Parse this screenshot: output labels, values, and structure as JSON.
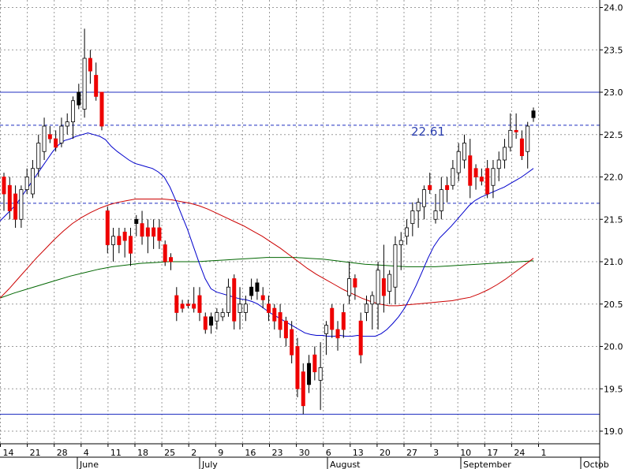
{
  "chart_data": {
    "type": "candlestick",
    "grid": true,
    "y_ticks": [
      "24.0",
      "23.5",
      "23.0",
      "22.5",
      "22.0",
      "21.5",
      "21.0",
      "20.5",
      "20.0",
      "19.5",
      "19.0"
    ],
    "ylim": [
      18.75,
      24.25
    ],
    "x_ticks": [
      "14",
      "21",
      "28",
      "4",
      "11",
      "18",
      "25",
      "2",
      "9",
      "16",
      "23",
      "30",
      "6",
      "13",
      "20",
      "27",
      "3",
      "10",
      "17",
      "24",
      "1"
    ],
    "months": [
      "June",
      "July",
      "August",
      "September",
      "Octob"
    ],
    "annotation": "22.61",
    "horizontal_lines": [
      {
        "value": 23.0,
        "style": "solid"
      },
      {
        "value": 22.61,
        "style": "dashed"
      },
      {
        "value": 21.69,
        "style": "dashed"
      },
      {
        "value": 19.2,
        "style": "solid"
      }
    ],
    "candles": [
      {
        "o": 22.0,
        "h": 22.05,
        "l": 21.6,
        "c": 21.8,
        "d": "down"
      },
      {
        "o": 21.9,
        "h": 22.0,
        "l": 21.5,
        "c": 21.6,
        "d": "down"
      },
      {
        "o": 21.8,
        "h": 21.9,
        "l": 21.4,
        "c": 21.5,
        "d": "down"
      },
      {
        "o": 21.5,
        "h": 21.9,
        "l": 21.4,
        "c": 21.85,
        "d": "up"
      },
      {
        "o": 21.85,
        "h": 22.1,
        "l": 21.8,
        "c": 22.0,
        "d": "up"
      },
      {
        "o": 21.8,
        "h": 22.2,
        "l": 21.75,
        "c": 22.1,
        "d": "up"
      },
      {
        "o": 22.1,
        "h": 22.5,
        "l": 22.0,
        "c": 22.4,
        "d": "up"
      },
      {
        "o": 22.3,
        "h": 22.7,
        "l": 22.2,
        "c": 22.6,
        "d": "up"
      },
      {
        "o": 22.5,
        "h": 22.6,
        "l": 22.4,
        "c": 22.45,
        "d": "down"
      },
      {
        "o": 22.45,
        "h": 22.55,
        "l": 22.3,
        "c": 22.35,
        "d": "down"
      },
      {
        "o": 22.4,
        "h": 22.7,
        "l": 22.35,
        "c": 22.6,
        "d": "up"
      },
      {
        "o": 22.6,
        "h": 22.75,
        "l": 22.5,
        "c": 22.65,
        "d": "up"
      },
      {
        "o": 22.65,
        "h": 22.95,
        "l": 22.45,
        "c": 22.9,
        "d": "up"
      },
      {
        "o": 23.0,
        "h": 23.1,
        "l": 22.8,
        "c": 22.85,
        "d": "black"
      },
      {
        "o": 22.8,
        "h": 23.75,
        "l": 22.7,
        "c": 23.4,
        "d": "up"
      },
      {
        "o": 23.4,
        "h": 23.5,
        "l": 23.1,
        "c": 23.25,
        "d": "down"
      },
      {
        "o": 23.2,
        "h": 23.35,
        "l": 22.9,
        "c": 22.95,
        "d": "down"
      },
      {
        "o": 23.0,
        "h": 23.0,
        "l": 22.55,
        "c": 22.6,
        "d": "down"
      },
      {
        "o": 21.6,
        "h": 21.65,
        "l": 21.1,
        "c": 21.2,
        "d": "down"
      },
      {
        "o": 21.3,
        "h": 21.4,
        "l": 21.0,
        "c": 21.2,
        "d": "up"
      },
      {
        "o": 21.3,
        "h": 21.4,
        "l": 21.1,
        "c": 21.2,
        "d": "down"
      },
      {
        "o": 21.35,
        "h": 21.4,
        "l": 21.05,
        "c": 21.25,
        "d": "down"
      },
      {
        "o": 21.3,
        "h": 21.4,
        "l": 20.95,
        "c": 21.1,
        "d": "down"
      },
      {
        "o": 21.5,
        "h": 21.55,
        "l": 21.3,
        "c": 21.45,
        "d": "black"
      },
      {
        "o": 21.45,
        "h": 21.6,
        "l": 21.2,
        "c": 21.3,
        "d": "down"
      },
      {
        "o": 21.4,
        "h": 21.5,
        "l": 21.1,
        "c": 21.3,
        "d": "down"
      },
      {
        "o": 21.4,
        "h": 21.5,
        "l": 21.15,
        "c": 21.3,
        "d": "down"
      },
      {
        "o": 21.4,
        "h": 21.5,
        "l": 21.15,
        "c": 21.25,
        "d": "down"
      },
      {
        "o": 21.2,
        "h": 21.25,
        "l": 20.95,
        "c": 21.0,
        "d": "down"
      },
      {
        "o": 21.05,
        "h": 21.1,
        "l": 20.9,
        "c": 21.0,
        "d": "down"
      },
      {
        "o": 20.6,
        "h": 20.7,
        "l": 20.3,
        "c": 20.4,
        "d": "down"
      },
      {
        "o": 20.5,
        "h": 20.55,
        "l": 20.4,
        "c": 20.45,
        "d": "down"
      },
      {
        "o": 20.5,
        "h": 20.55,
        "l": 20.45,
        "c": 20.5,
        "d": "down"
      },
      {
        "o": 20.5,
        "h": 20.7,
        "l": 20.4,
        "c": 20.45,
        "d": "down"
      },
      {
        "o": 20.6,
        "h": 20.7,
        "l": 20.3,
        "c": 20.4,
        "d": "down"
      },
      {
        "o": 20.35,
        "h": 20.4,
        "l": 20.15,
        "c": 20.2,
        "d": "down"
      },
      {
        "o": 20.25,
        "h": 20.4,
        "l": 20.15,
        "c": 20.35,
        "d": "black"
      },
      {
        "o": 20.3,
        "h": 20.45,
        "l": 20.2,
        "c": 20.4,
        "d": "up"
      },
      {
        "o": 20.35,
        "h": 20.45,
        "l": 20.3,
        "c": 20.4,
        "d": "up"
      },
      {
        "o": 20.4,
        "h": 20.8,
        "l": 20.35,
        "c": 20.7,
        "d": "up"
      },
      {
        "o": 20.8,
        "h": 20.85,
        "l": 20.2,
        "c": 20.3,
        "d": "down"
      },
      {
        "o": 20.5,
        "h": 20.7,
        "l": 20.2,
        "c": 20.4,
        "d": "up"
      },
      {
        "o": 20.4,
        "h": 20.6,
        "l": 20.3,
        "c": 20.5,
        "d": "up"
      },
      {
        "o": 20.7,
        "h": 20.8,
        "l": 20.55,
        "c": 20.6,
        "d": "black"
      },
      {
        "o": 20.75,
        "h": 20.8,
        "l": 20.55,
        "c": 20.65,
        "d": "black"
      },
      {
        "o": 20.6,
        "h": 20.7,
        "l": 20.45,
        "c": 20.55,
        "d": "down"
      },
      {
        "o": 20.5,
        "h": 20.6,
        "l": 20.3,
        "c": 20.4,
        "d": "down"
      },
      {
        "o": 20.45,
        "h": 20.5,
        "l": 20.2,
        "c": 20.3,
        "d": "down"
      },
      {
        "o": 20.4,
        "h": 20.5,
        "l": 20.1,
        "c": 20.2,
        "d": "down"
      },
      {
        "o": 20.3,
        "h": 20.35,
        "l": 20.0,
        "c": 20.1,
        "d": "down"
      },
      {
        "o": 20.2,
        "h": 20.3,
        "l": 19.8,
        "c": 19.9,
        "d": "down"
      },
      {
        "o": 20.0,
        "h": 20.1,
        "l": 19.4,
        "c": 19.5,
        "d": "down"
      },
      {
        "o": 19.7,
        "h": 19.8,
        "l": 19.2,
        "c": 19.3,
        "d": "down"
      },
      {
        "o": 19.8,
        "h": 19.9,
        "l": 19.45,
        "c": 19.55,
        "d": "black"
      },
      {
        "o": 19.7,
        "h": 20.0,
        "l": 19.6,
        "c": 19.9,
        "d": "down"
      },
      {
        "o": 19.6,
        "h": 20.05,
        "l": 19.25,
        "c": 19.75,
        "d": "up"
      },
      {
        "o": 20.15,
        "h": 20.3,
        "l": 19.9,
        "c": 20.25,
        "d": "up"
      },
      {
        "o": 20.45,
        "h": 20.5,
        "l": 20.1,
        "c": 20.2,
        "d": "down"
      },
      {
        "o": 20.2,
        "h": 20.3,
        "l": 19.95,
        "c": 20.1,
        "d": "down"
      },
      {
        "o": 20.4,
        "h": 20.5,
        "l": 20.1,
        "c": 20.2,
        "d": "down"
      },
      {
        "o": 20.6,
        "h": 21.0,
        "l": 20.5,
        "c": 20.8,
        "d": "up"
      },
      {
        "o": 20.8,
        "h": 20.85,
        "l": 20.55,
        "c": 20.7,
        "d": "down"
      },
      {
        "o": 20.3,
        "h": 20.4,
        "l": 19.8,
        "c": 19.9,
        "d": "down"
      },
      {
        "o": 20.4,
        "h": 20.6,
        "l": 20.3,
        "c": 20.5,
        "d": "up"
      },
      {
        "o": 20.5,
        "h": 20.65,
        "l": 20.2,
        "c": 20.6,
        "d": "up"
      },
      {
        "o": 20.5,
        "h": 21.0,
        "l": 20.2,
        "c": 20.9,
        "d": "up"
      },
      {
        "o": 20.8,
        "h": 21.2,
        "l": 20.4,
        "c": 20.6,
        "d": "down"
      },
      {
        "o": 20.65,
        "h": 20.9,
        "l": 20.5,
        "c": 20.85,
        "d": "up"
      },
      {
        "o": 20.7,
        "h": 21.3,
        "l": 20.5,
        "c": 21.2,
        "d": "up"
      },
      {
        "o": 21.2,
        "h": 21.35,
        "l": 20.9,
        "c": 21.25,
        "d": "up"
      },
      {
        "o": 21.3,
        "h": 21.5,
        "l": 21.2,
        "c": 21.4,
        "d": "up"
      },
      {
        "o": 21.45,
        "h": 21.7,
        "l": 21.3,
        "c": 21.6,
        "d": "up"
      },
      {
        "o": 21.6,
        "h": 21.75,
        "l": 21.4,
        "c": 21.7,
        "d": "up"
      },
      {
        "o": 21.65,
        "h": 21.9,
        "l": 21.5,
        "c": 21.85,
        "d": "up"
      },
      {
        "o": 21.9,
        "h": 22.05,
        "l": 21.8,
        "c": 21.85,
        "d": "down"
      },
      {
        "o": 21.5,
        "h": 21.8,
        "l": 21.45,
        "c": 21.6,
        "d": "up"
      },
      {
        "o": 21.6,
        "h": 22.0,
        "l": 21.5,
        "c": 21.85,
        "d": "up"
      },
      {
        "o": 21.9,
        "h": 22.0,
        "l": 21.7,
        "c": 21.85,
        "d": "down"
      },
      {
        "o": 21.9,
        "h": 22.2,
        "l": 21.85,
        "c": 22.1,
        "d": "up"
      },
      {
        "o": 22.05,
        "h": 22.4,
        "l": 21.95,
        "c": 22.3,
        "d": "up"
      },
      {
        "o": 22.2,
        "h": 22.5,
        "l": 22.1,
        "c": 22.4,
        "d": "up"
      },
      {
        "o": 22.25,
        "h": 22.45,
        "l": 21.75,
        "c": 21.9,
        "d": "down"
      },
      {
        "o": 22.1,
        "h": 22.15,
        "l": 21.85,
        "c": 22.0,
        "d": "down"
      },
      {
        "o": 21.95,
        "h": 22.1,
        "l": 21.9,
        "c": 22.0,
        "d": "down"
      },
      {
        "o": 22.1,
        "h": 22.2,
        "l": 21.75,
        "c": 21.8,
        "d": "down"
      },
      {
        "o": 21.9,
        "h": 22.2,
        "l": 21.75,
        "c": 22.1,
        "d": "up"
      },
      {
        "o": 22.1,
        "h": 22.3,
        "l": 21.95,
        "c": 22.2,
        "d": "up"
      },
      {
        "o": 22.2,
        "h": 22.45,
        "l": 22.1,
        "c": 22.35,
        "d": "up"
      },
      {
        "o": 22.35,
        "h": 22.75,
        "l": 22.3,
        "c": 22.55,
        "d": "up"
      },
      {
        "o": 22.55,
        "h": 22.75,
        "l": 22.45,
        "c": 22.55,
        "d": "down"
      },
      {
        "o": 22.45,
        "h": 22.55,
        "l": 22.2,
        "c": 22.25,
        "d": "down"
      },
      {
        "o": 22.3,
        "h": 22.65,
        "l": 22.1,
        "c": 22.6,
        "d": "up"
      },
      {
        "o": 22.7,
        "h": 22.82,
        "l": 22.65,
        "c": 22.78,
        "d": "black"
      }
    ],
    "ma_short_color": "#0000cc",
    "ma_mid_color": "#cc0000",
    "ma_long_color": "#006600",
    "ma_short": [
      21.48,
      21.55,
      21.62,
      21.7,
      21.8,
      21.9,
      22.0,
      22.1,
      22.2,
      22.3,
      22.38,
      22.43,
      22.45,
      22.48,
      22.5,
      22.52,
      22.5,
      22.48,
      22.44,
      22.36,
      22.3,
      22.25,
      22.2,
      22.16,
      22.14,
      22.12,
      22.1,
      22.06,
      22.0,
      21.88,
      21.72,
      21.55,
      21.38,
      21.18,
      20.98,
      20.8,
      20.68,
      20.64,
      20.62,
      20.6,
      20.58,
      20.56,
      20.55,
      20.53,
      20.5,
      20.45,
      20.4,
      20.36,
      20.32,
      20.28,
      20.24,
      20.2,
      20.16,
      20.14,
      20.13,
      20.13,
      20.12,
      20.12,
      20.13,
      20.12,
      20.12,
      20.13,
      20.12,
      20.12,
      20.12,
      20.15,
      20.2,
      20.27,
      20.35,
      20.45,
      20.58,
      20.72,
      20.88,
      21.04,
      21.18,
      21.28,
      21.35,
      21.42,
      21.5,
      21.58,
      21.66,
      21.72,
      21.76,
      21.79,
      21.82,
      21.85,
      21.88,
      21.92,
      21.96,
      22.0,
      22.05,
      22.1
    ],
    "ma_mid": [
      20.57,
      20.68,
      20.8,
      20.92,
      21.04,
      21.15,
      21.26,
      21.36,
      21.45,
      21.52,
      21.58,
      21.63,
      21.67,
      21.7,
      21.72,
      21.74,
      21.74,
      21.74,
      21.74,
      21.73,
      21.71,
      21.69,
      21.66,
      21.62,
      21.57,
      21.52,
      21.47,
      21.42,
      21.36,
      21.3,
      21.23,
      21.16,
      21.08,
      21.0,
      20.92,
      20.85,
      20.79,
      20.73,
      20.67,
      20.62,
      20.57,
      20.53,
      20.5,
      20.48,
      20.48,
      20.49,
      20.5,
      20.51,
      20.52,
      20.53,
      20.54,
      20.56,
      20.58,
      20.62,
      20.67,
      20.73,
      20.8,
      20.88,
      20.96,
      21.04
    ],
    "ma_long": [
      20.57,
      20.63,
      20.68,
      20.73,
      20.78,
      20.83,
      20.87,
      20.91,
      20.94,
      20.96,
      20.98,
      20.99,
      21.0,
      21.0,
      21.0,
      21.01,
      21.02,
      21.03,
      21.04,
      21.05,
      21.05,
      21.05,
      21.04,
      21.03,
      21.01,
      20.99,
      20.97,
      20.96,
      20.95,
      20.94,
      20.94,
      20.94,
      20.95,
      20.96,
      20.97,
      20.98,
      20.99,
      21.0,
      21.01
    ]
  }
}
